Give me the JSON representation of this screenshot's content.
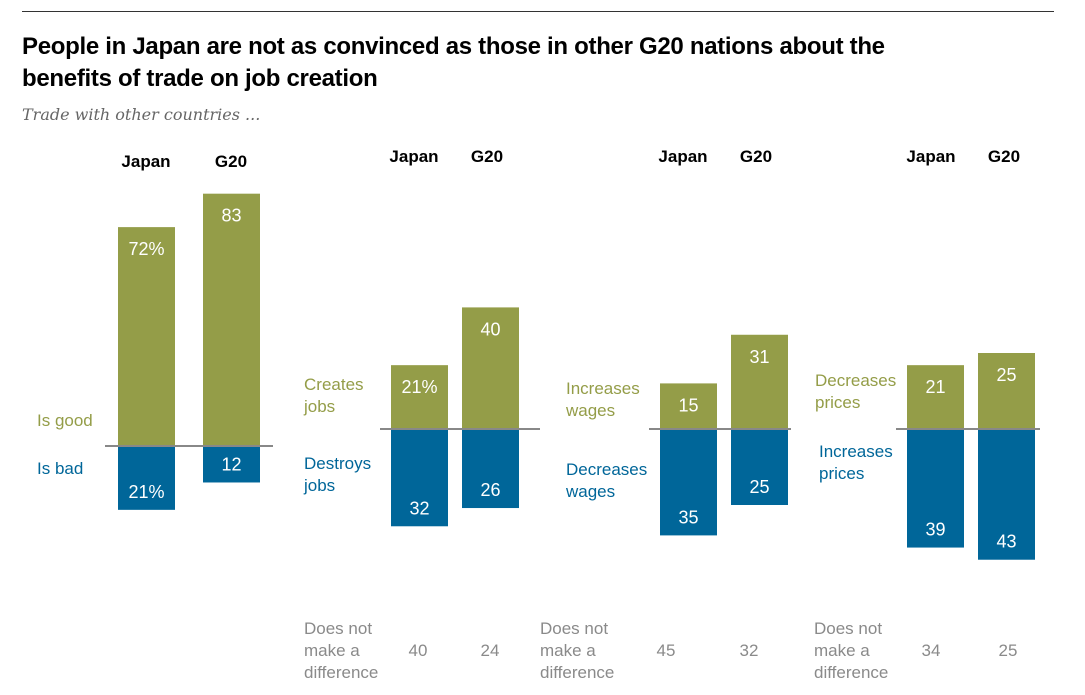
{
  "header": {
    "title_line1": "People in Japan are not as convinced as those in other G20 nations about the",
    "title_line2": "benefits of trade on job creation",
    "subtitle": "Trade with other countries ..."
  },
  "colors": {
    "positive": "#949d48",
    "negative": "#006699",
    "axis": "#888888",
    "neutral_text": "#8a8a8a"
  },
  "chart_data": {
    "type": "bar",
    "title": "People in Japan are not as convinced as those in other G20 nations about the benefits of trade on job creation",
    "subtitle": "Trade with other countries ...",
    "layout": "diverging-bar small multiples",
    "categories": [
      "Japan",
      "G20"
    ],
    "unit": "%",
    "panels": [
      {
        "name": "good-bad",
        "positive_label": [
          "Is good"
        ],
        "negative_label": [
          "Is bad"
        ],
        "positive": {
          "Japan": 72,
          "G20": 83
        },
        "negative": {
          "Japan": 21,
          "G20": 12
        },
        "positive_display": [
          "72%",
          "83"
        ],
        "negative_display": [
          "21%",
          "12"
        ],
        "neutral_label": null,
        "neutral": null
      },
      {
        "name": "jobs",
        "positive_label": [
          "Creates",
          "jobs"
        ],
        "negative_label": [
          "Destroys",
          "jobs"
        ],
        "positive": {
          "Japan": 21,
          "G20": 40
        },
        "negative": {
          "Japan": 32,
          "G20": 26
        },
        "positive_display": [
          "21%",
          "40"
        ],
        "negative_display": [
          "32",
          "26"
        ],
        "neutral_label": [
          "Does not",
          "make a",
          "difference"
        ],
        "neutral": {
          "Japan": 40,
          "G20": 24
        }
      },
      {
        "name": "wages",
        "positive_label": [
          "Increases",
          "wages"
        ],
        "negative_label": [
          "Decreases",
          "wages"
        ],
        "positive": {
          "Japan": 15,
          "G20": 31
        },
        "negative": {
          "Japan": 35,
          "G20": 25
        },
        "positive_display": [
          "15",
          "31"
        ],
        "negative_display": [
          "35",
          "25"
        ],
        "neutral_label": [
          "Does not",
          "make a",
          "difference"
        ],
        "neutral": {
          "Japan": 45,
          "G20": 32
        }
      },
      {
        "name": "prices",
        "positive_label": [
          "Decreases",
          "prices"
        ],
        "negative_label": [
          "Increases",
          "prices"
        ],
        "positive": {
          "Japan": 21,
          "G20": 25
        },
        "negative": {
          "Japan": 39,
          "G20": 43
        },
        "positive_display": [
          "21",
          "25"
        ],
        "negative_display": [
          "39",
          "43"
        ],
        "neutral_label": [
          "Does not",
          "make a",
          "difference"
        ],
        "neutral": {
          "Japan": 34,
          "G20": 25
        }
      }
    ],
    "grid": false,
    "legend": "none (inline category labels)"
  }
}
